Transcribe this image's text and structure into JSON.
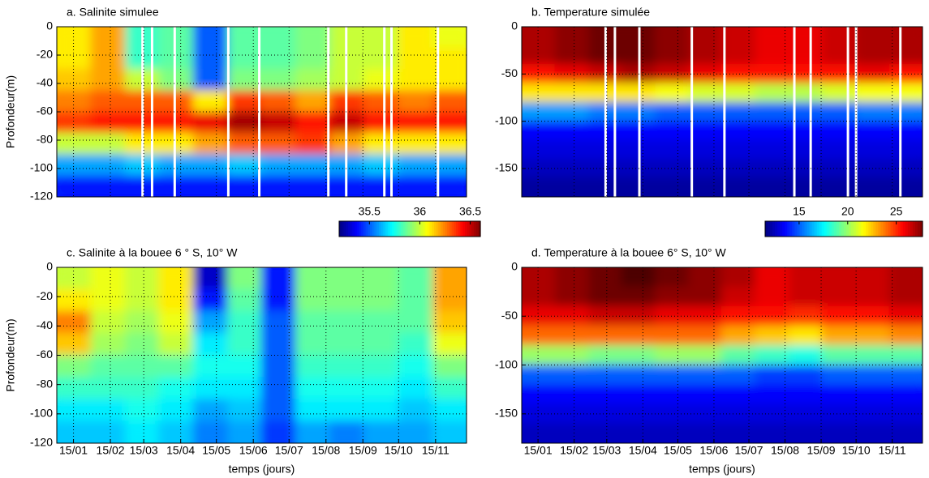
{
  "chart_data": [
    {
      "type": "heatmap",
      "title": "a. Salinite simulee",
      "ylabel": "Profondeur(m)",
      "x": [
        15,
        44,
        73,
        101,
        130,
        159,
        187,
        216,
        245,
        273,
        302,
        331
      ],
      "y": [
        -7.5,
        -22.5,
        -37.5,
        -52.5,
        -67.5,
        -82.5,
        -97.5,
        -112.5
      ],
      "values": [
        [
          36.1,
          36.2,
          35.8,
          35.85,
          35.5,
          35.85,
          35.85,
          35.9,
          36.0,
          36.0,
          36.1,
          36.05
        ],
        [
          36.1,
          36.2,
          35.8,
          35.85,
          35.5,
          35.85,
          35.85,
          35.9,
          36.0,
          36.0,
          36.1,
          36.1
        ],
        [
          36.15,
          36.2,
          36.0,
          35.9,
          35.5,
          35.9,
          35.9,
          35.95,
          36.0,
          36.05,
          36.1,
          36.1
        ],
        [
          36.25,
          36.3,
          36.3,
          36.3,
          36.1,
          36.35,
          36.3,
          36.2,
          36.35,
          36.3,
          36.25,
          36.3
        ],
        [
          36.35,
          36.4,
          36.4,
          36.4,
          36.45,
          36.55,
          36.5,
          36.4,
          36.5,
          36.4,
          36.4,
          36.4
        ],
        [
          36.0,
          36.0,
          36.1,
          36.1,
          36.2,
          36.3,
          36.3,
          36.35,
          36.2,
          36.1,
          36.1,
          36.1
        ],
        [
          35.6,
          35.6,
          35.65,
          35.6,
          35.6,
          35.65,
          35.6,
          35.6,
          35.6,
          35.65,
          35.6,
          35.6
        ],
        [
          35.4,
          35.4,
          35.4,
          35.4,
          35.4,
          35.4,
          35.4,
          35.4,
          35.4,
          35.4,
          35.4,
          35.4
        ]
      ],
      "xlim": [
        1,
        345
      ],
      "ylim": [
        -120,
        0
      ],
      "xticks": [
        15,
        46,
        74,
        105,
        135,
        166,
        196,
        227,
        258,
        288,
        319
      ],
      "yticks": [
        0,
        -20,
        -40,
        -60,
        -80,
        -100,
        -120
      ],
      "gaps": [
        73,
        81,
        100,
        145,
        171,
        229,
        244,
        276,
        282,
        321
      ],
      "clim": [
        35.2,
        36.6
      ],
      "colorbar_ticks": [
        35.5,
        36,
        36.5
      ],
      "grid": true
    },
    {
      "type": "heatmap",
      "title": "b.  Temperature simulée",
      "x": [
        15,
        44,
        73,
        101,
        130,
        159,
        187,
        216,
        245,
        273,
        302,
        331
      ],
      "y": [
        -10,
        -30,
        -50,
        -70,
        -90,
        -110,
        -130,
        -150,
        -170
      ],
      "values": [
        [
          27,
          27.5,
          28,
          28,
          27.5,
          27,
          26.5,
          26,
          26,
          26.5,
          27,
          27
        ],
        [
          27,
          27.5,
          28,
          28,
          27.5,
          27,
          26.5,
          26,
          26,
          26.5,
          27,
          27
        ],
        [
          25.5,
          26,
          26.5,
          27,
          26.5,
          26,
          25.5,
          25.5,
          25.5,
          25.5,
          26,
          25.5
        ],
        [
          22,
          22,
          22,
          22,
          21.5,
          21,
          21,
          20.5,
          20.5,
          21,
          21.5,
          21.5
        ],
        [
          16,
          16,
          15.5,
          15.5,
          15,
          15,
          15,
          15,
          15,
          15,
          15.5,
          15.5
        ],
        [
          13.5,
          13.5,
          13.5,
          13.5,
          13.5,
          13.5,
          13.5,
          13.5,
          13.5,
          13.5,
          13.5,
          13.5
        ],
        [
          13,
          13,
          13,
          13,
          13,
          13,
          13,
          13,
          13,
          13,
          13,
          13
        ],
        [
          12.5,
          12.5,
          12.5,
          12.5,
          12.5,
          12.5,
          12.5,
          12.5,
          12.5,
          12.5,
          12.5,
          12.5
        ],
        [
          12,
          12,
          12,
          12,
          12,
          12,
          12,
          12,
          12,
          12,
          12,
          12
        ]
      ],
      "xlim": [
        1,
        345
      ],
      "ylim": [
        -180,
        0
      ],
      "xticks": [
        15,
        46,
        74,
        105,
        135,
        166,
        196,
        227,
        258,
        288,
        319
      ],
      "yticks": [
        0,
        -50,
        -100,
        -150
      ],
      "gaps": [
        73,
        81,
        102,
        147,
        175,
        235,
        249,
        281,
        288,
        326
      ],
      "clim": [
        11.5,
        27.7
      ],
      "colorbar_ticks": [
        15,
        20,
        25
      ],
      "grid": true
    },
    {
      "type": "heatmap",
      "title": "c. Salinite à la bouee 6 ° S, 10° W",
      "ylabel": "Profondeur(m)",
      "xlabel": "temps (jours)",
      "x": [
        15,
        44,
        73,
        101,
        130,
        159,
        187,
        216,
        245,
        273,
        302,
        331
      ],
      "y": [
        -7.5,
        -22.5,
        -37.5,
        -52.5,
        -67.5,
        -82.5,
        -97.5,
        -112.5
      ],
      "values": [
        [
          36.0,
          36.05,
          36.0,
          36.1,
          35.3,
          35.9,
          35.4,
          35.9,
          35.9,
          35.9,
          35.85,
          36.2
        ],
        [
          36.1,
          36.05,
          36.0,
          36.1,
          35.4,
          35.85,
          35.4,
          35.9,
          35.9,
          35.9,
          35.85,
          36.2
        ],
        [
          36.25,
          36.0,
          35.95,
          36.05,
          35.6,
          35.8,
          35.5,
          35.85,
          35.85,
          35.85,
          35.85,
          36.15
        ],
        [
          36.15,
          35.95,
          35.9,
          36.0,
          35.7,
          35.8,
          35.5,
          35.85,
          35.85,
          35.85,
          35.8,
          36.05
        ],
        [
          35.9,
          35.85,
          35.85,
          35.85,
          35.75,
          35.75,
          35.5,
          35.8,
          35.8,
          35.8,
          35.75,
          35.9
        ],
        [
          35.8,
          35.8,
          35.8,
          35.75,
          35.7,
          35.7,
          35.5,
          35.75,
          35.75,
          35.75,
          35.7,
          35.8
        ],
        [
          35.7,
          35.7,
          35.75,
          35.7,
          35.6,
          35.65,
          35.5,
          35.7,
          35.7,
          35.7,
          35.65,
          35.7
        ],
        [
          35.65,
          35.65,
          35.7,
          35.65,
          35.55,
          35.6,
          35.45,
          35.6,
          35.55,
          35.6,
          35.6,
          35.65
        ]
      ],
      "xlim": [
        1,
        345
      ],
      "ylim": [
        -120,
        0
      ],
      "xticks": [
        {
          "value": 15,
          "label": "15/01"
        },
        {
          "value": 46,
          "label": "15/02"
        },
        {
          "value": 74,
          "label": "15/03"
        },
        {
          "value": 105,
          "label": "15/04"
        },
        {
          "value": 135,
          "label": "15/05"
        },
        {
          "value": 166,
          "label": "15/06"
        },
        {
          "value": 196,
          "label": "15/07"
        },
        {
          "value": 227,
          "label": "15/08"
        },
        {
          "value": 258,
          "label": "15/09"
        },
        {
          "value": 288,
          "label": "15/10"
        },
        {
          "value": 319,
          "label": "15/11"
        }
      ],
      "yticks": [
        0,
        -20,
        -40,
        -60,
        -80,
        -100,
        -120
      ],
      "clim": [
        35.2,
        36.6
      ],
      "grid": true
    },
    {
      "type": "heatmap",
      "title": "d. Temperature à la bouee 6° S, 10° W",
      "xlabel": "temps (jours)",
      "x": [
        15,
        44,
        73,
        101,
        130,
        159,
        187,
        216,
        245,
        273,
        302,
        331
      ],
      "y": [
        -10,
        -30,
        -50,
        -70,
        -90,
        -110,
        -130,
        -150,
        -170
      ],
      "values": [
        [
          27,
          27.5,
          28,
          28.5,
          28,
          27.5,
          27,
          26,
          26.5,
          26.5,
          26.5,
          27
        ],
        [
          27,
          27.5,
          28,
          28,
          27.5,
          27.5,
          26.5,
          26,
          26.5,
          26.5,
          26.5,
          27
        ],
        [
          26,
          26,
          26.5,
          26.5,
          26,
          26,
          25.5,
          25.5,
          25,
          25.5,
          25.5,
          26
        ],
        [
          24,
          24,
          24,
          24,
          24,
          24,
          23,
          22.5,
          22,
          23,
          23,
          23.5
        ],
        [
          20,
          20,
          19.5,
          19.5,
          20,
          20,
          19,
          18.5,
          18,
          19,
          19,
          19
        ],
        [
          15,
          15,
          15,
          15,
          15,
          15,
          15,
          14.5,
          14.5,
          15,
          15,
          15
        ],
        [
          13.5,
          13.5,
          13.5,
          13.5,
          13.5,
          13.5,
          13.5,
          13.5,
          13.5,
          13.5,
          13.5,
          13.5
        ],
        [
          13,
          13,
          13,
          13,
          13,
          13,
          13,
          13,
          13,
          13,
          13,
          13
        ],
        [
          12.5,
          12.5,
          12.5,
          12.5,
          12.5,
          12.5,
          12.5,
          12.5,
          12.5,
          12.5,
          12.5,
          12.5
        ]
      ],
      "xlim": [
        1,
        345
      ],
      "ylim": [
        -180,
        0
      ],
      "xticks": [
        {
          "value": 15,
          "label": "15/01"
        },
        {
          "value": 46,
          "label": "15/02"
        },
        {
          "value": 74,
          "label": "15/03"
        },
        {
          "value": 105,
          "label": "15/04"
        },
        {
          "value": 135,
          "label": "15/05"
        },
        {
          "value": 166,
          "label": "15/06"
        },
        {
          "value": 196,
          "label": "15/07"
        },
        {
          "value": 227,
          "label": "15/08"
        },
        {
          "value": 258,
          "label": "15/09"
        },
        {
          "value": 288,
          "label": "15/10"
        },
        {
          "value": 319,
          "label": "15/11"
        }
      ],
      "yticks": [
        0,
        -50,
        -100,
        -150
      ],
      "clim": [
        11.5,
        27.7
      ],
      "grid": true
    }
  ]
}
